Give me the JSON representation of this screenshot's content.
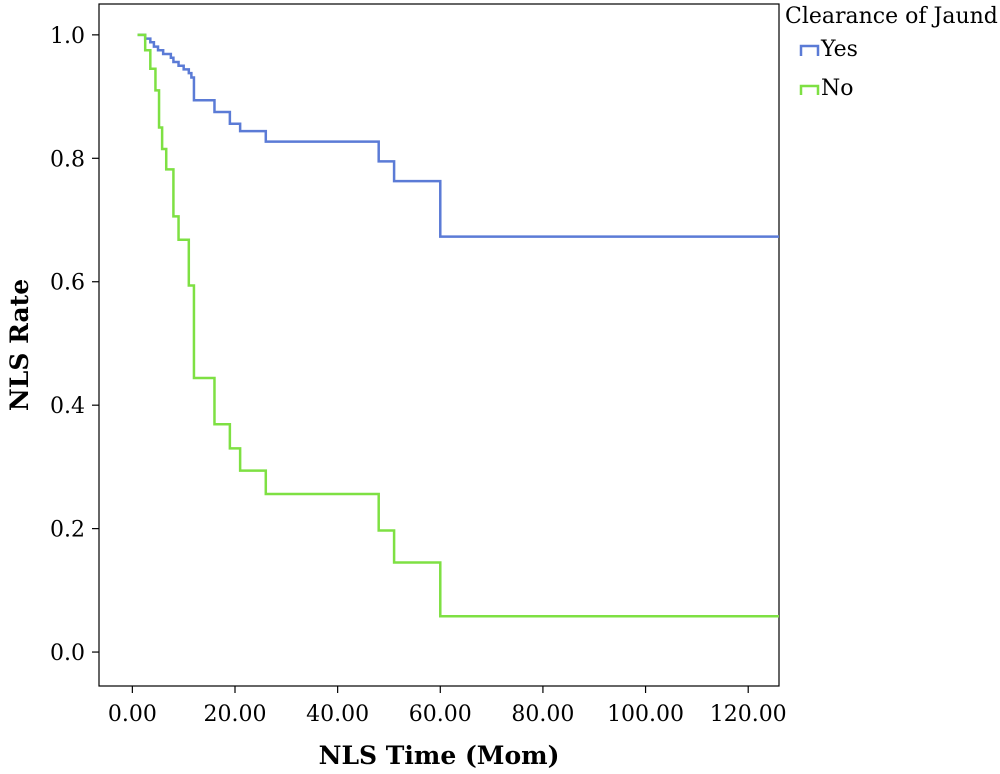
{
  "chart_data": {
    "type": "line",
    "step": true,
    "xlabel": "NLS Time (Mom)",
    "ylabel": "NLS Rate",
    "xlim": [
      -6.5,
      126
    ],
    "ylim": [
      -0.055,
      1.05
    ],
    "xticks": [
      0,
      20,
      40,
      60,
      80,
      100,
      120
    ],
    "xtick_labels": [
      "0.00",
      "20.00",
      "40.00",
      "60.00",
      "80.00",
      "100.00",
      "120.00"
    ],
    "yticks": [
      0,
      0.2,
      0.4,
      0.6,
      0.8,
      1.0
    ],
    "ytick_labels": [
      "0.0",
      "0.2",
      "0.4",
      "0.6",
      "0.8",
      "1.0"
    ],
    "grid": false,
    "legend": {
      "title": "Clearance of Jaund",
      "position": "top-right",
      "entries": [
        "Yes",
        "No"
      ]
    },
    "series": [
      {
        "name": "Yes",
        "color": "#5b7bd6",
        "points": [
          [
            1,
            1.0
          ],
          [
            2.5,
            0.994
          ],
          [
            3.5,
            0.988
          ],
          [
            4.2,
            0.981
          ],
          [
            5,
            0.975
          ],
          [
            6,
            0.969
          ],
          [
            7.5,
            0.963
          ],
          [
            8,
            0.956
          ],
          [
            9,
            0.95
          ],
          [
            10,
            0.944
          ],
          [
            11,
            0.938
          ],
          [
            11.5,
            0.931
          ],
          [
            12,
            0.894
          ],
          [
            16,
            0.875
          ],
          [
            19,
            0.856
          ],
          [
            21,
            0.844
          ],
          [
            26,
            0.827
          ],
          [
            48,
            0.795
          ],
          [
            51,
            0.763
          ],
          [
            60,
            0.673
          ],
          [
            126,
            0.673
          ]
        ]
      },
      {
        "name": "No",
        "color": "#7ee043",
        "points": [
          [
            1,
            1.0
          ],
          [
            2.5,
            0.975
          ],
          [
            3.5,
            0.945
          ],
          [
            4.5,
            0.91
          ],
          [
            5.2,
            0.85
          ],
          [
            5.8,
            0.815
          ],
          [
            6.6,
            0.782
          ],
          [
            8,
            0.706
          ],
          [
            9,
            0.668
          ],
          [
            11,
            0.594
          ],
          [
            12,
            0.444
          ],
          [
            16,
            0.369
          ],
          [
            19,
            0.33
          ],
          [
            21,
            0.294
          ],
          [
            26,
            0.256
          ],
          [
            48,
            0.197
          ],
          [
            51,
            0.145
          ],
          [
            60,
            0.058
          ],
          [
            126,
            0.058
          ]
        ]
      }
    ]
  }
}
